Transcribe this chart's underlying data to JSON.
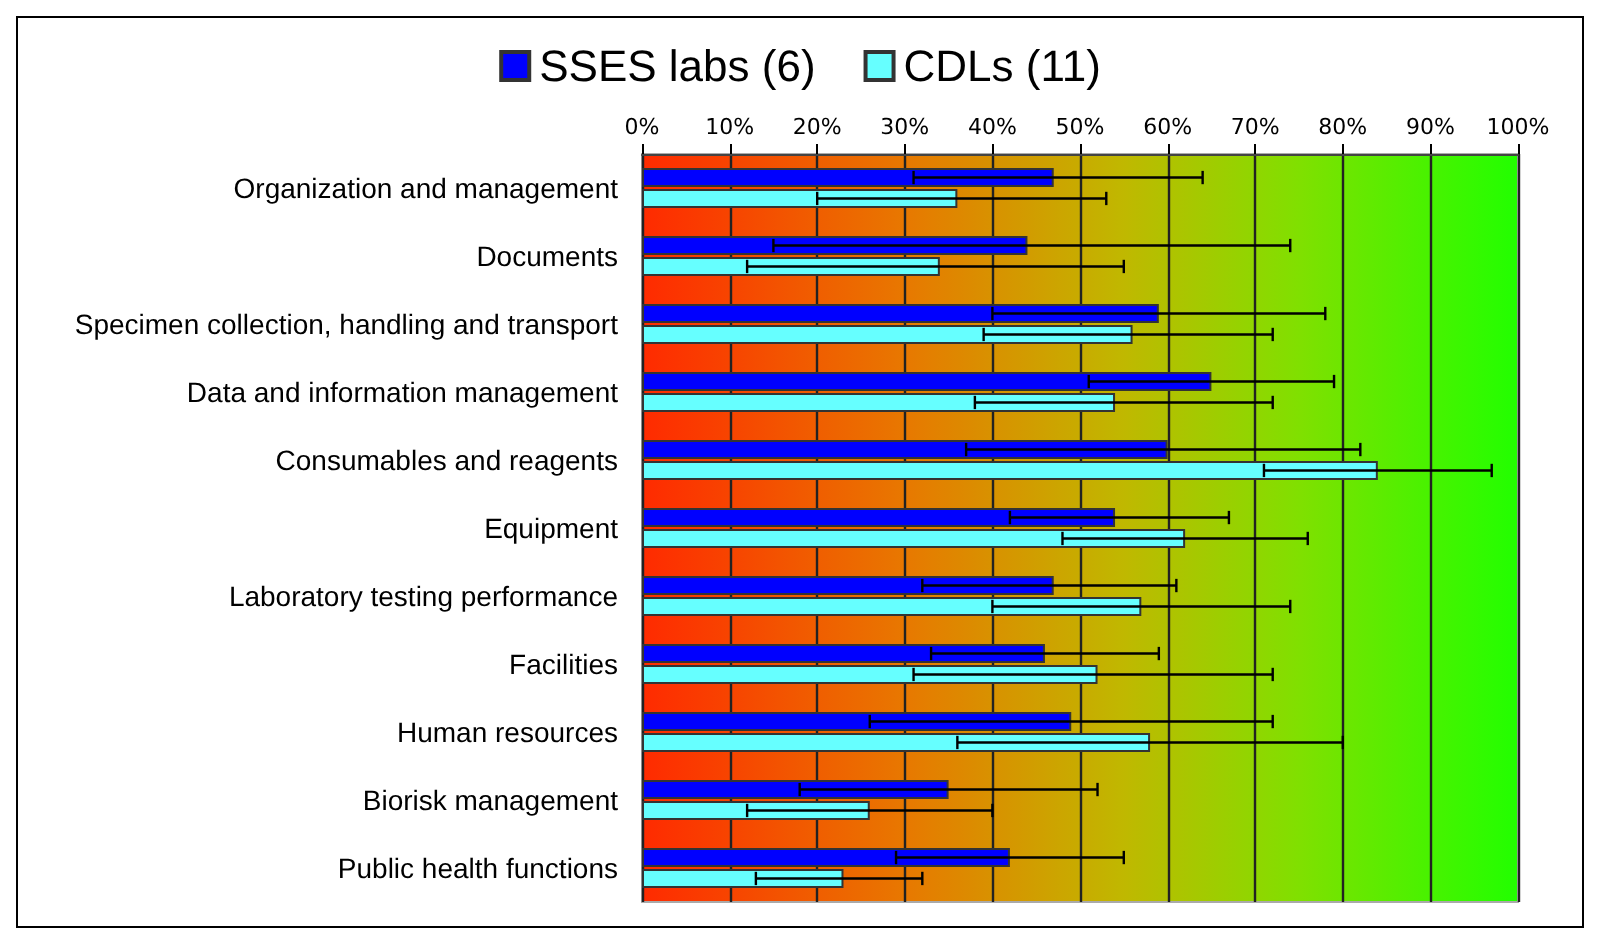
{
  "chart_data": {
    "type": "bar",
    "orientation": "horizontal",
    "categories": [
      "Organization and management",
      "Documents",
      "Specimen collection, handling and transport",
      "Data and information management",
      "Consumables and reagents",
      "Equipment",
      "Laboratory testing performance",
      "Facilities",
      "Human resources",
      "Biorisk management",
      "Public health functions"
    ],
    "series": [
      {
        "name": "SSES labs (6)",
        "color": "#0000ff",
        "values": [
          47,
          44,
          59,
          65,
          60,
          54,
          47,
          46,
          49,
          35,
          42
        ],
        "errors": [
          [
            31,
            64
          ],
          [
            15,
            74
          ],
          [
            40,
            78
          ],
          [
            51,
            79
          ],
          [
            37,
            82
          ],
          [
            42,
            67
          ],
          [
            32,
            61
          ],
          [
            33,
            59
          ],
          [
            26,
            72
          ],
          [
            18,
            52
          ],
          [
            29,
            55
          ]
        ]
      },
      {
        "name": "CDLs (11)",
        "color": "#66ffff",
        "values": [
          36,
          34,
          56,
          54,
          84,
          62,
          57,
          52,
          58,
          26,
          23
        ],
        "errors": [
          [
            20,
            53
          ],
          [
            12,
            55
          ],
          [
            39,
            72
          ],
          [
            38,
            72
          ],
          [
            71,
            97
          ],
          [
            48,
            76
          ],
          [
            40,
            74
          ],
          [
            31,
            72
          ],
          [
            36,
            80
          ],
          [
            12,
            40
          ],
          [
            13,
            32
          ]
        ]
      }
    ],
    "xlim": [
      0,
      100
    ],
    "xticks": [
      {
        "value": 0,
        "label": "0%"
      },
      {
        "value": 10,
        "label": "10%"
      },
      {
        "value": 20,
        "label": "20%"
      },
      {
        "value": 30,
        "label": "30%"
      },
      {
        "value": 40,
        "label": "40%"
      },
      {
        "value": 50,
        "label": "50%"
      },
      {
        "value": 60,
        "label": "60%"
      },
      {
        "value": 70,
        "label": "70%"
      },
      {
        "value": 80,
        "label": "80%"
      },
      {
        "value": 90,
        "label": "90%"
      },
      {
        "value": 100,
        "label": "100%"
      }
    ],
    "grid": "x",
    "legend": "top"
  }
}
